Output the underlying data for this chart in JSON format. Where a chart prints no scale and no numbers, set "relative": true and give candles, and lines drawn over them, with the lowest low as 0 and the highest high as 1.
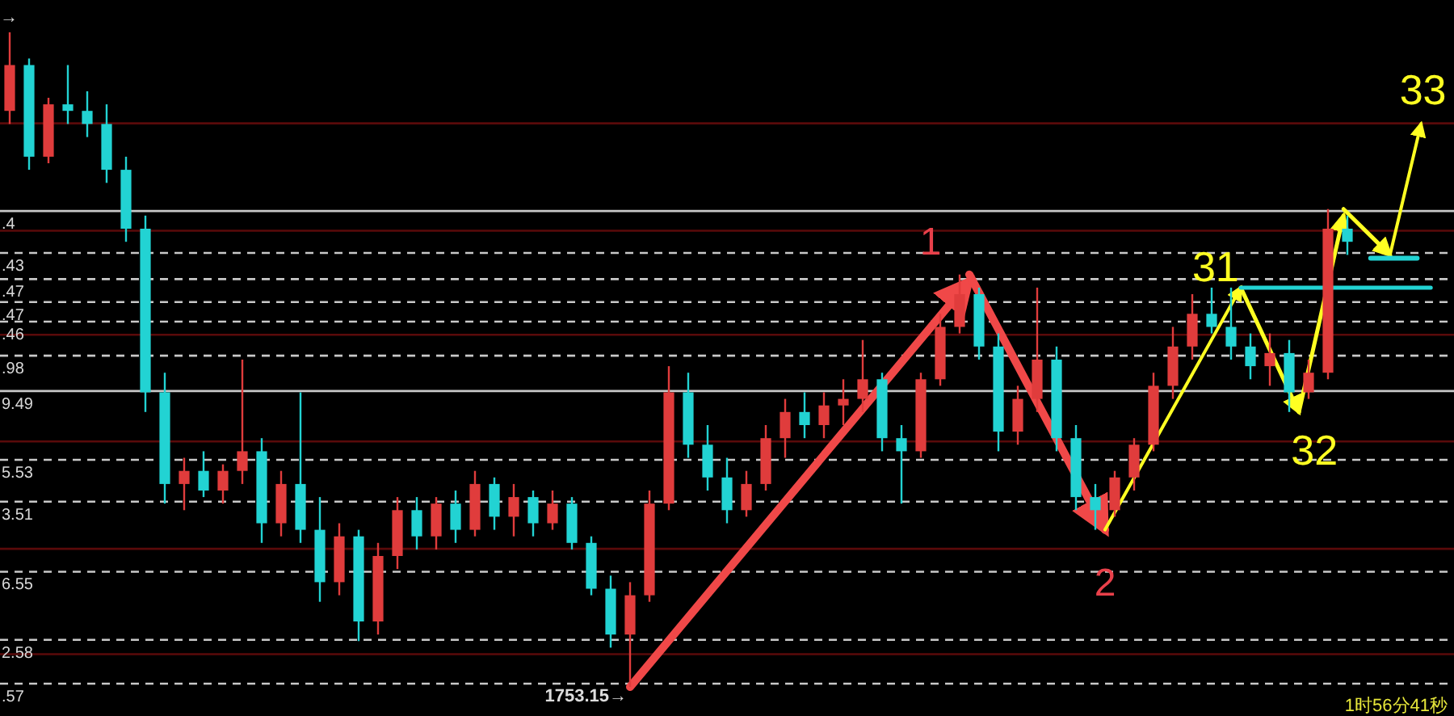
{
  "chart_data": {
    "type": "candlestick",
    "relative": true,
    "categories": [
      null,
      null,
      null,
      null,
      null,
      null,
      null,
      null,
      null,
      null,
      null,
      null,
      null,
      null,
      null,
      null,
      null,
      null,
      null,
      null,
      null,
      null,
      null,
      null,
      null,
      null,
      null,
      null,
      null,
      null,
      null,
      null,
      null,
      null,
      null,
      null,
      null,
      null,
      null,
      null,
      null,
      null,
      null,
      null,
      null,
      null,
      null,
      null,
      null,
      null,
      null,
      null,
      null,
      null,
      null,
      null,
      null,
      null,
      null,
      null,
      null,
      null,
      null,
      null,
      null,
      null,
      null,
      null,
      null,
      null
    ],
    "ohlc": [
      [
        0.88,
        1.0,
        0.86,
        0.95
      ],
      [
        0.95,
        0.96,
        0.79,
        0.81
      ],
      [
        0.81,
        0.9,
        0.8,
        0.89
      ],
      [
        0.89,
        0.95,
        0.86,
        0.88
      ],
      [
        0.88,
        0.91,
        0.84,
        0.86
      ],
      [
        0.86,
        0.89,
        0.77,
        0.79
      ],
      [
        0.79,
        0.81,
        0.68,
        0.7
      ],
      [
        0.7,
        0.72,
        0.42,
        0.45
      ],
      [
        0.45,
        0.48,
        0.28,
        0.31
      ],
      [
        0.31,
        0.35,
        0.27,
        0.33
      ],
      [
        0.33,
        0.36,
        0.29,
        0.3
      ],
      [
        0.3,
        0.34,
        0.28,
        0.33
      ],
      [
        0.33,
        0.5,
        0.31,
        0.36
      ],
      [
        0.36,
        0.38,
        0.22,
        0.25
      ],
      [
        0.25,
        0.33,
        0.23,
        0.31
      ],
      [
        0.31,
        0.45,
        0.22,
        0.24
      ],
      [
        0.24,
        0.29,
        0.13,
        0.16
      ],
      [
        0.16,
        0.25,
        0.14,
        0.23
      ],
      [
        0.23,
        0.24,
        0.07,
        0.1
      ],
      [
        0.1,
        0.22,
        0.08,
        0.2
      ],
      [
        0.2,
        0.29,
        0.18,
        0.27
      ],
      [
        0.27,
        0.29,
        0.21,
        0.23
      ],
      [
        0.23,
        0.29,
        0.21,
        0.28
      ],
      [
        0.28,
        0.3,
        0.22,
        0.24
      ],
      [
        0.24,
        0.33,
        0.23,
        0.31
      ],
      [
        0.31,
        0.32,
        0.24,
        0.26
      ],
      [
        0.26,
        0.31,
        0.23,
        0.29
      ],
      [
        0.29,
        0.3,
        0.23,
        0.25
      ],
      [
        0.25,
        0.3,
        0.24,
        0.28
      ],
      [
        0.28,
        0.29,
        0.21,
        0.22
      ],
      [
        0.22,
        0.23,
        0.14,
        0.15
      ],
      [
        0.15,
        0.17,
        0.06,
        0.08
      ],
      [
        0.08,
        0.16,
        0.0,
        0.14
      ],
      [
        0.14,
        0.3,
        0.13,
        0.28
      ],
      [
        0.28,
        0.49,
        0.27,
        0.45
      ],
      [
        0.45,
        0.48,
        0.35,
        0.37
      ],
      [
        0.37,
        0.4,
        0.3,
        0.32
      ],
      [
        0.32,
        0.35,
        0.25,
        0.27
      ],
      [
        0.27,
        0.33,
        0.26,
        0.31
      ],
      [
        0.31,
        0.4,
        0.3,
        0.38
      ],
      [
        0.38,
        0.44,
        0.35,
        0.42
      ],
      [
        0.42,
        0.45,
        0.38,
        0.4
      ],
      [
        0.4,
        0.45,
        0.38,
        0.43
      ],
      [
        0.43,
        0.47,
        0.4,
        0.44
      ],
      [
        0.44,
        0.53,
        0.42,
        0.47
      ],
      [
        0.47,
        0.48,
        0.36,
        0.38
      ],
      [
        0.38,
        0.4,
        0.28,
        0.36
      ],
      [
        0.36,
        0.48,
        0.35,
        0.47
      ],
      [
        0.47,
        0.57,
        0.46,
        0.55
      ],
      [
        0.55,
        0.63,
        0.54,
        0.6
      ],
      [
        0.6,
        0.61,
        0.5,
        0.52
      ],
      [
        0.52,
        0.54,
        0.36,
        0.39
      ],
      [
        0.39,
        0.46,
        0.37,
        0.44
      ],
      [
        0.44,
        0.61,
        0.42,
        0.5
      ],
      [
        0.5,
        0.52,
        0.36,
        0.38
      ],
      [
        0.38,
        0.4,
        0.27,
        0.29
      ],
      [
        0.29,
        0.31,
        0.24,
        0.27
      ],
      [
        0.27,
        0.33,
        0.26,
        0.32
      ],
      [
        0.32,
        0.38,
        0.3,
        0.37
      ],
      [
        0.37,
        0.48,
        0.36,
        0.46
      ],
      [
        0.46,
        0.55,
        0.44,
        0.52
      ],
      [
        0.52,
        0.6,
        0.5,
        0.57
      ],
      [
        0.57,
        0.61,
        0.54,
        0.55
      ],
      [
        0.55,
        0.61,
        0.5,
        0.52
      ],
      [
        0.52,
        0.54,
        0.47,
        0.49
      ],
      [
        0.49,
        0.54,
        0.46,
        0.51
      ],
      [
        0.51,
        0.53,
        0.42,
        0.45
      ],
      [
        0.45,
        0.5,
        0.44,
        0.48
      ],
      [
        0.48,
        0.73,
        0.47,
        0.7
      ],
      [
        0.7,
        0.72,
        0.66,
        0.68
      ]
    ],
    "colors": [
      "#e03c3c",
      "#22d3d3",
      "#e03c3c",
      "#22d3d3",
      "#22d3d3",
      "#22d3d3",
      "#22d3d3",
      "#22d3d3",
      "#22d3d3",
      "#e03c3c",
      "#22d3d3",
      "#e03c3c",
      "#e03c3c",
      "#22d3d3",
      "#e03c3c",
      "#22d3d3",
      "#22d3d3",
      "#e03c3c",
      "#22d3d3",
      "#e03c3c",
      "#e03c3c",
      "#22d3d3",
      "#e03c3c",
      "#22d3d3",
      "#e03c3c",
      "#22d3d3",
      "#e03c3c",
      "#22d3d3",
      "#e03c3c",
      "#22d3d3",
      "#22d3d3",
      "#22d3d3",
      "#e03c3c",
      "#e03c3c",
      "#e03c3c",
      "#22d3d3",
      "#22d3d3",
      "#22d3d3",
      "#e03c3c",
      "#e03c3c",
      "#e03c3c",
      "#22d3d3",
      "#e03c3c",
      "#e03c3c",
      "#e03c3c",
      "#22d3d3",
      "#22d3d3",
      "#e03c3c",
      "#e03c3c",
      "#e03c3c",
      "#22d3d3",
      "#22d3d3",
      "#e03c3c",
      "#e03c3c",
      "#22d3d3",
      "#22d3d3",
      "#22d3d3",
      "#e03c3c",
      "#e03c3c",
      "#e03c3c",
      "#e03c3c",
      "#e03c3c",
      "#22d3d3",
      "#22d3d3",
      "#22d3d3",
      "#e03c3c",
      "#22d3d3",
      "#e03c3c",
      "#e03c3c",
      "#22d3d3"
    ],
    "ref_lines": [
      {
        "axis": "y",
        "value": 0.727,
        "color": "#c8c8c8",
        "line_style": "solid"
      },
      {
        "axis": "y",
        "value": 0.663,
        "color": "#c8c8c8",
        "line_style": "dashed"
      },
      {
        "axis": "y",
        "value": 0.623,
        "color": "#c8c8c8",
        "line_style": "dashed"
      },
      {
        "axis": "y",
        "value": 0.588,
        "color": "#c8c8c8",
        "line_style": "dashed"
      },
      {
        "axis": "y",
        "value": 0.558,
        "color": "#c8c8c8",
        "line_style": "dashed"
      },
      {
        "axis": "y",
        "value": 0.506,
        "color": "#c8c8c8",
        "line_style": "dashed"
      },
      {
        "axis": "y",
        "value": 0.452,
        "color": "#c8c8c8",
        "line_style": "solid"
      },
      {
        "axis": "y",
        "value": 0.347,
        "color": "#c8c8c8",
        "line_style": "dashed"
      },
      {
        "axis": "y",
        "value": 0.283,
        "color": "#c8c8c8",
        "line_style": "dashed"
      },
      {
        "axis": "y",
        "value": 0.176,
        "color": "#c8c8c8",
        "line_style": "dashed"
      },
      {
        "axis": "y",
        "value": 0.072,
        "color": "#c8c8c8",
        "line_style": "dashed"
      },
      {
        "axis": "y",
        "value": 0.005,
        "color": "#c8c8c8",
        "line_style": "dashed"
      },
      {
        "axis": "y",
        "value": 0.861,
        "color": "#5a0a0a",
        "line_style": "solid"
      },
      {
        "axis": "y",
        "value": 0.697,
        "color": "#5a0a0a",
        "line_style": "solid"
      },
      {
        "axis": "y",
        "value": 0.538,
        "color": "#5a0a0a",
        "line_style": "solid"
      },
      {
        "axis": "y",
        "value": 0.375,
        "color": "#5a0a0a",
        "line_style": "solid"
      },
      {
        "axis": "y",
        "value": 0.211,
        "color": "#5a0a0a",
        "line_style": "solid"
      },
      {
        "axis": "y",
        "value": 0.05,
        "color": "#5a0a0a",
        "line_style": "solid"
      }
    ],
    "annotations": [
      "1",
      "2",
      "31",
      "32",
      "33",
      "1753.15→",
      "→",
      "1时56分41秒",
      ".4",
      ".43",
      ".47",
      ".47",
      ".46",
      ".98",
      "9.49",
      "5.53",
      "3.51",
      "6.55",
      "2.58",
      ".57"
    ],
    "grid": false
  }
}
